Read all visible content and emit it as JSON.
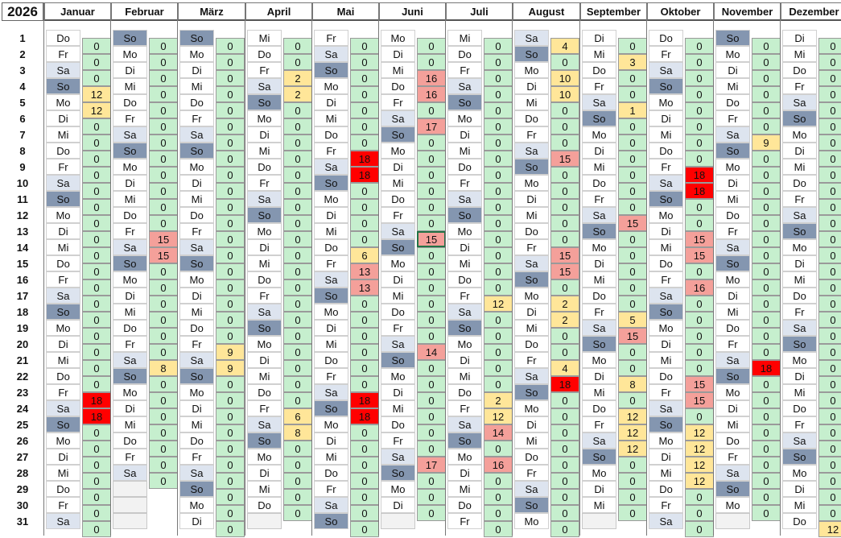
{
  "year": "2026",
  "months": [
    {
      "name": "Januar",
      "first_weekday": 3,
      "days": 31,
      "values": [
        0,
        0,
        0,
        12,
        12,
        0,
        0,
        0,
        0,
        0,
        0,
        0,
        0,
        0,
        0,
        0,
        0,
        0,
        0,
        0,
        0,
        0,
        18,
        18,
        0,
        0,
        0,
        0,
        0,
        0,
        0
      ]
    },
    {
      "name": "Februar",
      "first_weekday": 6,
      "days": 28,
      "values": [
        0,
        0,
        0,
        0,
        0,
        0,
        0,
        0,
        0,
        0,
        0,
        0,
        15,
        15,
        0,
        0,
        0,
        0,
        0,
        0,
        8,
        0,
        0,
        0,
        0,
        0,
        0,
        0
      ]
    },
    {
      "name": "März",
      "first_weekday": 6,
      "days": 31,
      "values": [
        0,
        0,
        0,
        0,
        0,
        0,
        0,
        0,
        0,
        0,
        0,
        0,
        0,
        0,
        0,
        0,
        0,
        0,
        0,
        9,
        9,
        0,
        0,
        0,
        0,
        0,
        0,
        0,
        0,
        0,
        0
      ]
    },
    {
      "name": "April",
      "first_weekday": 2,
      "days": 30,
      "values": [
        0,
        0,
        2,
        2,
        0,
        0,
        0,
        0,
        0,
        0,
        0,
        0,
        0,
        0,
        0,
        0,
        0,
        0,
        0,
        0,
        0,
        0,
        0,
        6,
        8,
        0,
        0,
        0,
        0,
        0
      ]
    },
    {
      "name": "Mai",
      "first_weekday": 4,
      "days": 31,
      "values": [
        0,
        0,
        0,
        0,
        0,
        0,
        0,
        18,
        18,
        0,
        0,
        0,
        0,
        6,
        13,
        13,
        0,
        0,
        0,
        0,
        0,
        0,
        18,
        18,
        0,
        0,
        0,
        0,
        0,
        0,
        0
      ]
    },
    {
      "name": "Juni",
      "first_weekday": 0,
      "days": 30,
      "values": [
        0,
        0,
        16,
        16,
        0,
        17,
        0,
        0,
        0,
        0,
        0,
        0,
        15,
        0,
        0,
        0,
        0,
        0,
        0,
        14,
        0,
        0,
        0,
        0,
        0,
        0,
        17,
        0,
        0,
        0
      ]
    },
    {
      "name": "Juli",
      "first_weekday": 2,
      "days": 31,
      "values": [
        0,
        0,
        0,
        0,
        0,
        0,
        0,
        0,
        0,
        0,
        0,
        0,
        0,
        0,
        0,
        0,
        12,
        0,
        0,
        0,
        0,
        0,
        2,
        12,
        14,
        0,
        16,
        0,
        0,
        0,
        0
      ]
    },
    {
      "name": "August",
      "first_weekday": 5,
      "days": 31,
      "values": [
        4,
        0,
        10,
        10,
        0,
        0,
        0,
        15,
        0,
        0,
        0,
        0,
        0,
        15,
        15,
        0,
        2,
        2,
        0,
        0,
        4,
        18,
        0,
        0,
        0,
        0,
        0,
        0,
        0,
        0,
        0
      ]
    },
    {
      "name": "September",
      "first_weekday": 1,
      "days": 30,
      "values": [
        0,
        3,
        0,
        0,
        1,
        0,
        0,
        0,
        0,
        0,
        0,
        15,
        0,
        0,
        0,
        0,
        0,
        5,
        15,
        0,
        0,
        8,
        0,
        12,
        12,
        12,
        0,
        0,
        0,
        0
      ]
    },
    {
      "name": "Oktober",
      "first_weekday": 3,
      "days": 31,
      "values": [
        0,
        0,
        0,
        0,
        0,
        0,
        0,
        0,
        18,
        18,
        0,
        0,
        15,
        15,
        0,
        16,
        0,
        0,
        0,
        0,
        0,
        15,
        15,
        0,
        12,
        12,
        12,
        12,
        0,
        0,
        0
      ]
    },
    {
      "name": "November",
      "first_weekday": 6,
      "days": 30,
      "values": [
        0,
        0,
        0,
        0,
        0,
        0,
        9,
        0,
        0,
        0,
        0,
        0,
        0,
        0,
        0,
        0,
        0,
        0,
        0,
        0,
        18,
        0,
        0,
        0,
        0,
        0,
        0,
        0,
        0,
        0
      ]
    },
    {
      "name": "Dezember",
      "first_weekday": 1,
      "days": 31,
      "values": [
        0,
        0,
        0,
        0,
        0,
        0,
        0,
        0,
        0,
        0,
        0,
        0,
        0,
        0,
        0,
        0,
        0,
        0,
        0,
        0,
        0,
        0,
        0,
        0,
        0,
        0,
        0,
        0,
        0,
        0,
        12
      ]
    }
  ],
  "weekday_abbr": [
    "Mo",
    "Di",
    "Mi",
    "Do",
    "Fr",
    "Sa",
    "So"
  ],
  "day_numbers": [
    1,
    2,
    3,
    4,
    5,
    6,
    7,
    8,
    9,
    10,
    11,
    12,
    13,
    14,
    15,
    16,
    17,
    18,
    19,
    20,
    21,
    22,
    23,
    24,
    25,
    26,
    27,
    28,
    29,
    30,
    31
  ],
  "colors": {
    "zero": "#c6efce",
    "low": "#ffe699",
    "mid": "#f4a09a",
    "high": "#ff0000",
    "saturday": "#dde4ef",
    "sunday": "#8496b0"
  },
  "selected_cell": {
    "month": 5,
    "day": 12
  }
}
